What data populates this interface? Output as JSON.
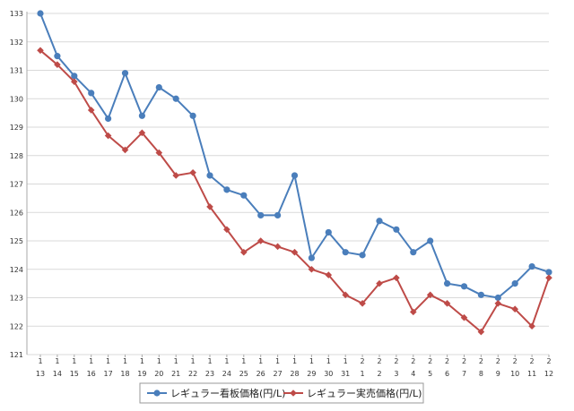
{
  "chart_data": {
    "type": "line",
    "categories": [
      [
        "1",
        "13"
      ],
      [
        "1",
        "14"
      ],
      [
        "1",
        "15"
      ],
      [
        "1",
        "16"
      ],
      [
        "1",
        "17"
      ],
      [
        "1",
        "18"
      ],
      [
        "1",
        "19"
      ],
      [
        "1",
        "20"
      ],
      [
        "1",
        "21"
      ],
      [
        "1",
        "22"
      ],
      [
        "1",
        "23"
      ],
      [
        "1",
        "24"
      ],
      [
        "1",
        "25"
      ],
      [
        "1",
        "26"
      ],
      [
        "1",
        "27"
      ],
      [
        "1",
        "28"
      ],
      [
        "1",
        "29"
      ],
      [
        "1",
        "30"
      ],
      [
        "1",
        "31"
      ],
      [
        "2",
        "1"
      ],
      [
        "2",
        "2"
      ],
      [
        "2",
        "3"
      ],
      [
        "2",
        "4"
      ],
      [
        "2",
        "5"
      ],
      [
        "2",
        "6"
      ],
      [
        "2",
        "7"
      ],
      [
        "2",
        "8"
      ],
      [
        "2",
        "9"
      ],
      [
        "2",
        "10"
      ],
      [
        "2",
        "11"
      ],
      [
        "2",
        "12"
      ]
    ],
    "yticks": [
      121,
      122,
      123,
      124,
      125,
      126,
      127,
      128,
      129,
      130,
      131,
      132,
      133
    ],
    "ylim": [
      121,
      133
    ],
    "grid": true,
    "legend": "bottom",
    "series": [
      {
        "name": "レギュラー看板価格(円/L)",
        "color": "#4a7ebb",
        "marker": "circle",
        "values": [
          133.0,
          131.5,
          130.8,
          130.2,
          129.3,
          130.9,
          129.4,
          130.4,
          130.0,
          129.4,
          127.3,
          126.8,
          126.6,
          125.9,
          125.9,
          127.3,
          124.4,
          125.3,
          124.6,
          124.5,
          125.7,
          125.4,
          124.6,
          125.0,
          123.5,
          123.4,
          123.1,
          123.0,
          123.5,
          124.1,
          123.9
        ]
      },
      {
        "name": "レギュラー実売価格(円/L)",
        "color": "#be4b48",
        "marker": "diamond",
        "values": [
          131.7,
          131.2,
          130.6,
          129.6,
          128.7,
          128.2,
          128.8,
          128.1,
          127.3,
          127.4,
          126.2,
          125.4,
          124.6,
          125.0,
          124.8,
          124.6,
          124.0,
          123.8,
          123.1,
          122.8,
          123.5,
          123.7,
          122.5,
          123.1,
          122.8,
          122.3,
          121.8,
          122.8,
          122.6,
          122.0,
          123.7
        ]
      }
    ]
  }
}
